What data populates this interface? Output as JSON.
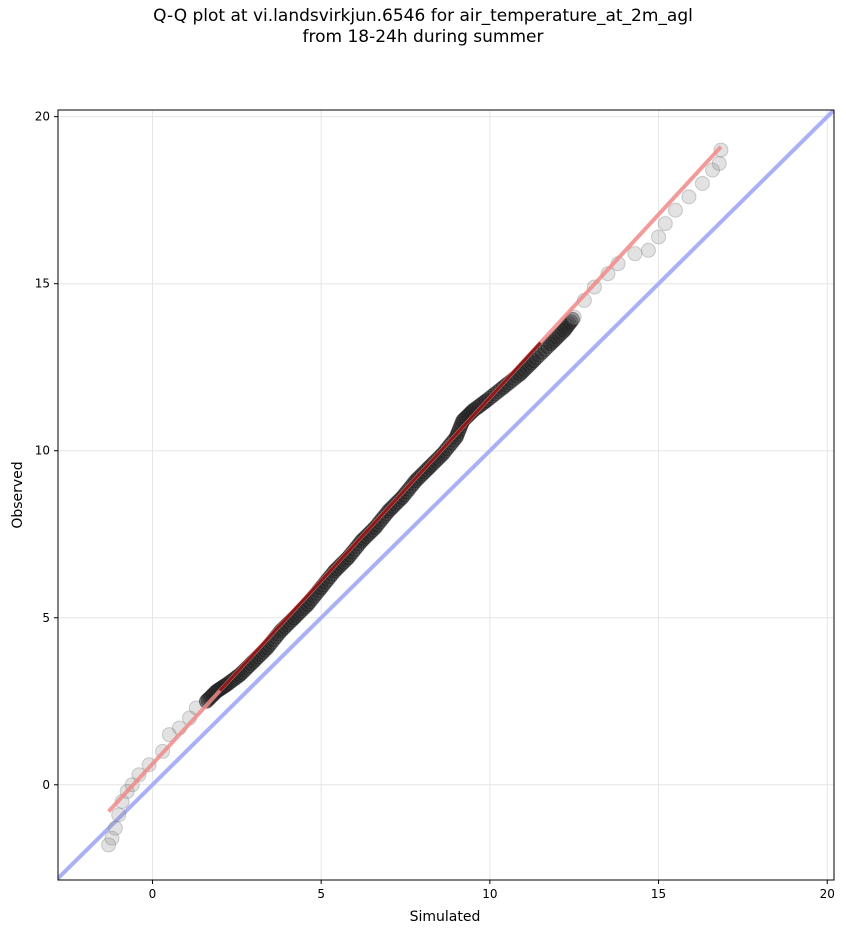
{
  "chart_data": {
    "type": "scatter",
    "title_line1": "Q-Q plot at vi.landsvirkjun.6546 for air_temperature_at_2m_agl",
    "title_line2": "from 18-24h during summer",
    "xlabel": "Simulated",
    "ylabel": "Observed",
    "xlim": [
      -2.8,
      20.2
    ],
    "ylim": [
      -2.85,
      20.2
    ],
    "xticks": [
      0,
      5,
      10,
      15,
      20
    ],
    "yticks": [
      0,
      5,
      10,
      15,
      20
    ],
    "grid": true,
    "reference_line": {
      "name": "1:1",
      "color": "#aab0f5",
      "points": [
        [
          -2.8,
          -2.8
        ],
        [
          20.2,
          20.2
        ]
      ]
    },
    "fit_line": {
      "color": "#f08a8a",
      "points": [
        [
          -1.3,
          -0.8
        ],
        [
          16.85,
          19.1
        ]
      ]
    },
    "quantile_points": [
      [
        -1.3,
        -1.8
      ],
      [
        -1.2,
        -1.6
      ],
      [
        -1.1,
        -1.3
      ],
      [
        -1.0,
        -0.9
      ],
      [
        -0.9,
        -0.5
      ],
      [
        -0.75,
        -0.2
      ],
      [
        -0.6,
        0.0
      ],
      [
        -0.4,
        0.3
      ],
      [
        -0.1,
        0.6
      ],
      [
        0.3,
        1.0
      ],
      [
        0.5,
        1.5
      ],
      [
        0.8,
        1.7
      ],
      [
        1.1,
        2.0
      ],
      [
        1.3,
        2.3
      ],
      [
        1.6,
        2.5
      ],
      [
        1.9,
        2.8
      ],
      [
        2.2,
        3.0
      ],
      [
        2.6,
        3.3
      ],
      [
        3.0,
        3.7
      ],
      [
        3.4,
        4.1
      ],
      [
        3.8,
        4.6
      ],
      [
        4.2,
        5.0
      ],
      [
        4.6,
        5.4
      ],
      [
        5.0,
        5.9
      ],
      [
        5.4,
        6.4
      ],
      [
        5.8,
        6.8
      ],
      [
        6.2,
        7.3
      ],
      [
        6.6,
        7.7
      ],
      [
        7.0,
        8.2
      ],
      [
        7.4,
        8.6
      ],
      [
        7.8,
        9.1
      ],
      [
        8.2,
        9.5
      ],
      [
        8.6,
        9.9
      ],
      [
        9.0,
        10.4
      ],
      [
        9.2,
        10.9
      ],
      [
        9.5,
        11.2
      ],
      [
        9.9,
        11.5
      ],
      [
        10.4,
        11.9
      ],
      [
        10.9,
        12.3
      ],
      [
        11.3,
        12.7
      ],
      [
        11.8,
        13.2
      ],
      [
        12.2,
        13.6
      ],
      [
        12.5,
        14.0
      ],
      [
        12.8,
        14.5
      ],
      [
        13.1,
        14.9
      ],
      [
        13.5,
        15.3
      ],
      [
        13.8,
        15.6
      ],
      [
        14.3,
        15.9
      ],
      [
        14.7,
        16.0
      ],
      [
        15.0,
        16.4
      ],
      [
        15.2,
        16.8
      ],
      [
        15.5,
        17.2
      ],
      [
        15.9,
        17.6
      ],
      [
        16.3,
        18.0
      ],
      [
        16.6,
        18.4
      ],
      [
        16.8,
        18.6
      ],
      [
        16.85,
        19.0
      ]
    ]
  }
}
